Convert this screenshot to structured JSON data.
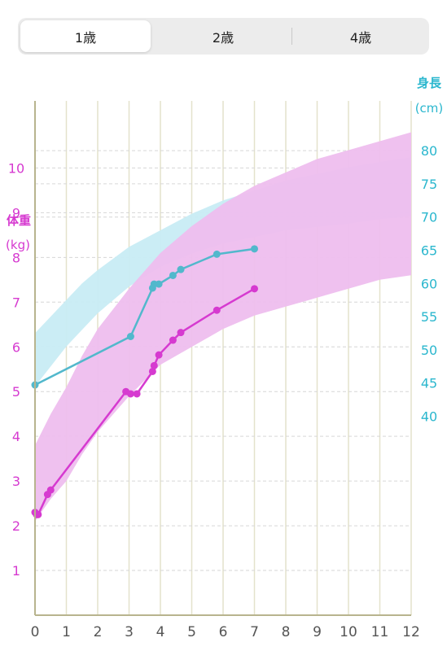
{
  "tabs": [
    {
      "label": "1歳",
      "active": true
    },
    {
      "label": "2歳",
      "active": false
    },
    {
      "label": "4歳",
      "active": false
    }
  ],
  "chart_data": {
    "type": "line",
    "x_ticks": [
      "0",
      "1",
      "2",
      "3",
      "4",
      "5",
      "6",
      "7",
      "8",
      "9",
      "10",
      "11",
      "12"
    ],
    "xlim": [
      0,
      12
    ],
    "grid": true,
    "colors": {
      "weight": "#d63ad0",
      "weight_band": "#eebeee",
      "height": "#52b8cc",
      "height_band": "#c8ecf4"
    },
    "weight_axis": {
      "title": "体重",
      "unit": "(kg)",
      "side": "left",
      "ylim": [
        0,
        11.5
      ],
      "ticks": [
        "1",
        "2",
        "3",
        "4",
        "5",
        "6",
        "7",
        "8",
        "9",
        "10"
      ]
    },
    "height_axis": {
      "title": "身長",
      "unit": "(cm)",
      "side": "right",
      "ylim": [
        10,
        87.5
      ],
      "ticks": [
        "40",
        "45",
        "50",
        "55",
        "60",
        "65",
        "70",
        "75",
        "80"
      ]
    },
    "weight_band": {
      "x": [
        0,
        0.5,
        1,
        1.5,
        2,
        3,
        4,
        5,
        6,
        7,
        8,
        9,
        10,
        11,
        12
      ],
      "lower": [
        2.1,
        2.6,
        3.0,
        3.6,
        4.1,
        4.9,
        5.6,
        6.0,
        6.4,
        6.7,
        6.9,
        7.1,
        7.3,
        7.5,
        7.6
      ],
      "upper": [
        3.8,
        4.5,
        5.1,
        5.8,
        6.4,
        7.3,
        8.1,
        8.7,
        9.2,
        9.6,
        9.9,
        10.2,
        10.4,
        10.6,
        10.8
      ]
    },
    "height_band": {
      "x": [
        0,
        0.5,
        1,
        1.5,
        2,
        3,
        4,
        5,
        6,
        7,
        8,
        9,
        10,
        11,
        12
      ],
      "lower": [
        44.5,
        47.5,
        50.5,
        53,
        55.5,
        59.5,
        62.5,
        64.5,
        66,
        67,
        68,
        68.5,
        69,
        69.7,
        70.1
      ],
      "upper": [
        52.5,
        55,
        57.5,
        60,
        62,
        65.5,
        68,
        70.5,
        72.5,
        74,
        75.5,
        76.5,
        77.5,
        78.3,
        79
      ]
    },
    "weight_series": {
      "x": [
        0,
        0.05,
        0.1,
        0.4,
        0.5,
        2.9,
        3.05,
        3.25,
        3.75,
        3.8,
        3.95,
        4.4,
        4.65,
        5.8,
        7.0
      ],
      "y": [
        2.3,
        2.25,
        2.25,
        2.7,
        2.8,
        5.0,
        4.95,
        4.95,
        5.45,
        5.58,
        5.82,
        6.15,
        6.32,
        6.82,
        7.3
      ]
    },
    "height_series": {
      "x": [
        0,
        3.05,
        3.75,
        3.8,
        3.95,
        4.4,
        4.65,
        5.8,
        7.0
      ],
      "y": [
        44.7,
        52,
        59.3,
        59.9,
        59.9,
        61.2,
        62.1,
        64.4,
        65.2
      ]
    }
  }
}
